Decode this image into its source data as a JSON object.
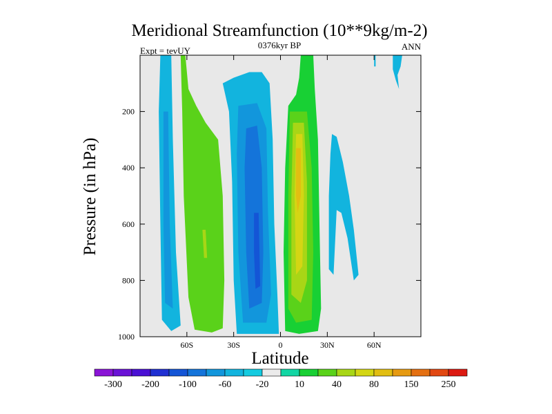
{
  "chart_data": {
    "type": "contour",
    "title": "Meridional Streamfunction (10**9kg/m-2)",
    "subtitle_left": "Expt = tevUY",
    "subtitle_center": "0376kyr BP",
    "subtitle_right": "ANN",
    "xlabel": "Latitude",
    "ylabel": "Pressure (in hPa)",
    "xlim": [
      -90,
      90
    ],
    "ylim": [
      0,
      1000
    ],
    "y_inverted": true,
    "x_ticks": [
      {
        "value": -60,
        "label": "60S"
      },
      {
        "value": -30,
        "label": "30S"
      },
      {
        "value": 0,
        "label": "0"
      },
      {
        "value": 30,
        "label": "30N"
      },
      {
        "value": 60,
        "label": "60N"
      }
    ],
    "y_ticks": [
      {
        "value": 200,
        "label": "200"
      },
      {
        "value": 400,
        "label": "400"
      },
      {
        "value": 600,
        "label": "600"
      },
      {
        "value": 800,
        "label": "800"
      },
      {
        "value": 1000,
        "label": "1000"
      }
    ],
    "background_color": "#e8e8e8",
    "colorbar": {
      "colors": [
        "#8a14d6",
        "#6a12d6",
        "#4a10d4",
        "#2030d2",
        "#1455d6",
        "#1474da",
        "#1296dc",
        "#12b4de",
        "#14cbe0",
        "#ebebeb",
        "#12d6a4",
        "#18d034",
        "#5ad21a",
        "#a8d616",
        "#d4d614",
        "#e2be12",
        "#e69a12",
        "#e47012",
        "#e24812",
        "#dc1a12"
      ],
      "labels": [
        "-300",
        "-200",
        "-100",
        "-60",
        "-20",
        "10",
        "40",
        "80",
        "150",
        "250"
      ]
    },
    "regions": [
      {
        "name": "sh-polar-cell-negative",
        "color": "#12b4de",
        "points": [
          [
            -77,
            0
          ],
          [
            -70,
            0
          ],
          [
            -69,
            300
          ],
          [
            -67,
            700
          ],
          [
            -64,
            960
          ],
          [
            -70,
            980
          ],
          [
            -76,
            940
          ],
          [
            -77,
            600
          ],
          [
            -78,
            200
          ]
        ]
      },
      {
        "name": "sh-polar-cell-core",
        "color": "#1296dc",
        "points": [
          [
            -75,
            200
          ],
          [
            -72,
            200
          ],
          [
            -71,
            600
          ],
          [
            -69,
            900
          ],
          [
            -74,
            880
          ],
          [
            -75,
            600
          ]
        ]
      },
      {
        "name": "sh-ferrel-cell-positive",
        "color": "#5ad21a",
        "points": [
          [
            -64,
            0
          ],
          [
            -61,
            0
          ],
          [
            -59,
            120
          ],
          [
            -54,
            180
          ],
          [
            -48,
            240
          ],
          [
            -40,
            300
          ],
          [
            -37,
            500
          ],
          [
            -36,
            800
          ],
          [
            -37,
            970
          ],
          [
            -44,
            985
          ],
          [
            -55,
            975
          ],
          [
            -59,
            860
          ],
          [
            -62,
            500
          ],
          [
            -63,
            200
          ]
        ]
      },
      {
        "name": "sh-ferrel-cell-core",
        "color": "#a8d616",
        "points": [
          [
            -50,
            620
          ],
          [
            -48,
            620
          ],
          [
            -47,
            720
          ],
          [
            -49,
            720
          ]
        ]
      },
      {
        "name": "sh-hadley-cell-negative",
        "color": "#12b4de",
        "points": [
          [
            -37,
            100
          ],
          [
            -30,
            80
          ],
          [
            -20,
            60
          ],
          [
            -12,
            60
          ],
          [
            -7,
            100
          ],
          [
            -5,
            300
          ],
          [
            -4,
            600
          ],
          [
            -2,
            850
          ],
          [
            -1,
            990
          ],
          [
            -28,
            990
          ],
          [
            -30,
            800
          ],
          [
            -31,
            450
          ],
          [
            -33,
            200
          ]
        ]
      },
      {
        "name": "sh-hadley-cell-mid",
        "color": "#1296dc",
        "points": [
          [
            -27,
            180
          ],
          [
            -15,
            170
          ],
          [
            -9,
            260
          ],
          [
            -8,
            560
          ],
          [
            -6,
            850
          ],
          [
            -9,
            950
          ],
          [
            -24,
            950
          ],
          [
            -27,
            700
          ],
          [
            -28,
            350
          ]
        ]
      },
      {
        "name": "sh-hadley-cell-inner",
        "color": "#1474da",
        "points": [
          [
            -22,
            260
          ],
          [
            -15,
            250
          ],
          [
            -12,
            400
          ],
          [
            -11,
            700
          ],
          [
            -12,
            880
          ],
          [
            -20,
            900
          ],
          [
            -22,
            700
          ],
          [
            -23,
            400
          ]
        ]
      },
      {
        "name": "sh-hadley-cell-core",
        "color": "#1455d6",
        "points": [
          [
            -17,
            560
          ],
          [
            -14,
            560
          ],
          [
            -13,
            820
          ],
          [
            -16,
            830
          ],
          [
            -17,
            700
          ]
        ]
      },
      {
        "name": "nh-hadley-cell-positive",
        "color": "#18d034",
        "points": [
          [
            13,
            0
          ],
          [
            21,
            0
          ],
          [
            22,
            120
          ],
          [
            24,
            300
          ],
          [
            25,
            600
          ],
          [
            26,
            900
          ],
          [
            24,
            980
          ],
          [
            12,
            990
          ],
          [
            3,
            980
          ],
          [
            2,
            700
          ],
          [
            3,
            400
          ],
          [
            5,
            180
          ],
          [
            10,
            140
          ],
          [
            12,
            80
          ]
        ]
      },
      {
        "name": "nh-hadley-cell-mid",
        "color": "#5ad21a",
        "points": [
          [
            6,
            200
          ],
          [
            17,
            200
          ],
          [
            20,
            400
          ],
          [
            21,
            700
          ],
          [
            20,
            940
          ],
          [
            10,
            950
          ],
          [
            5,
            900
          ],
          [
            5,
            500
          ]
        ]
      },
      {
        "name": "nh-hadley-cell-inner",
        "color": "#a8d616",
        "points": [
          [
            8,
            240
          ],
          [
            15,
            240
          ],
          [
            17,
            450
          ],
          [
            17,
            800
          ],
          [
            13,
            880
          ],
          [
            7,
            850
          ],
          [
            7,
            500
          ]
        ]
      },
      {
        "name": "nh-hadley-cell-core",
        "color": "#d4d614",
        "points": [
          [
            10,
            280
          ],
          [
            14,
            280
          ],
          [
            15,
            500
          ],
          [
            14,
            750
          ],
          [
            10,
            780
          ],
          [
            9,
            500
          ]
        ]
      },
      {
        "name": "nh-hadley-cell-peak",
        "color": "#e2be12",
        "points": [
          [
            10,
            330
          ],
          [
            13,
            330
          ],
          [
            13,
            500
          ],
          [
            11,
            560
          ],
          [
            10,
            500
          ]
        ]
      },
      {
        "name": "nh-midlatitude-negative",
        "color": "#12b4de",
        "points": [
          [
            33,
            280
          ],
          [
            36,
            290
          ],
          [
            40,
            380
          ],
          [
            44,
            500
          ],
          [
            47,
            620
          ],
          [
            50,
            780
          ],
          [
            47,
            800
          ],
          [
            43,
            650
          ],
          [
            39,
            560
          ],
          [
            36,
            550
          ],
          [
            34,
            780
          ],
          [
            31,
            760
          ],
          [
            31,
            500
          ],
          [
            32,
            350
          ]
        ]
      },
      {
        "name": "nh-upper-negative-small",
        "color": "#12b4de",
        "points": [
          [
            60,
            0
          ],
          [
            61,
            0
          ],
          [
            61,
            40
          ],
          [
            60,
            40
          ]
        ]
      },
      {
        "name": "nh-upper-negative-spur",
        "color": "#12b4de",
        "points": [
          [
            72,
            0
          ],
          [
            78,
            0
          ],
          [
            77,
            40
          ],
          [
            75,
            70
          ],
          [
            76,
            120
          ],
          [
            74,
            90
          ],
          [
            72,
            50
          ]
        ]
      }
    ]
  }
}
